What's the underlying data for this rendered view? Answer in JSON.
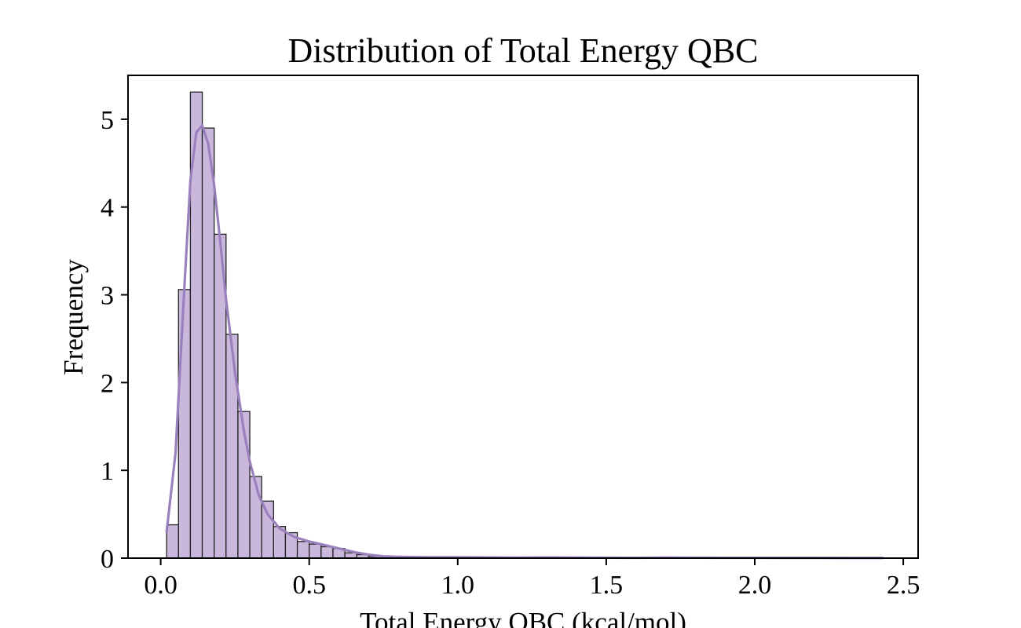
{
  "chart_data": {
    "type": "bar",
    "title": "Distribution of Total Energy QBC",
    "xlabel": "Total Energy QBC (kcal/mol)",
    "ylabel": "Frequency",
    "xlim": [
      -0.11,
      2.55
    ],
    "ylim": [
      0,
      5.5
    ],
    "xticks": [
      0.0,
      0.5,
      1.0,
      1.5,
      2.0,
      2.5
    ],
    "xtick_labels": [
      "0.0",
      "0.5",
      "1.0",
      "1.5",
      "2.0",
      "2.5"
    ],
    "yticks": [
      0,
      1,
      2,
      3,
      4,
      5
    ],
    "ytick_labels": [
      "0",
      "1",
      "2",
      "3",
      "4",
      "5"
    ],
    "grid": false,
    "bar_fill": "#c9b8dc",
    "bar_edge": "#222222",
    "kde_color": "#9a80bd",
    "bins": [
      {
        "x0": 0.02,
        "x1": 0.06,
        "value": 0.38
      },
      {
        "x0": 0.06,
        "x1": 0.1,
        "value": 3.06
      },
      {
        "x0": 0.1,
        "x1": 0.14,
        "value": 5.31
      },
      {
        "x0": 0.14,
        "x1": 0.18,
        "value": 4.9
      },
      {
        "x0": 0.18,
        "x1": 0.22,
        "value": 3.69
      },
      {
        "x0": 0.22,
        "x1": 0.26,
        "value": 2.55
      },
      {
        "x0": 0.26,
        "x1": 0.3,
        "value": 1.67
      },
      {
        "x0": 0.3,
        "x1": 0.34,
        "value": 0.93
      },
      {
        "x0": 0.34,
        "x1": 0.38,
        "value": 0.65
      },
      {
        "x0": 0.38,
        "x1": 0.42,
        "value": 0.36
      },
      {
        "x0": 0.42,
        "x1": 0.46,
        "value": 0.29
      },
      {
        "x0": 0.46,
        "x1": 0.5,
        "value": 0.19
      },
      {
        "x0": 0.5,
        "x1": 0.54,
        "value": 0.16
      },
      {
        "x0": 0.54,
        "x1": 0.58,
        "value": 0.13
      },
      {
        "x0": 0.58,
        "x1": 0.62,
        "value": 0.11
      },
      {
        "x0": 0.62,
        "x1": 0.66,
        "value": 0.06
      },
      {
        "x0": 0.66,
        "x1": 0.7,
        "value": 0.04
      },
      {
        "x0": 0.7,
        "x1": 0.74,
        "value": 0.02
      },
      {
        "x0": 0.74,
        "x1": 0.78,
        "value": 0.01
      },
      {
        "x0": 0.78,
        "x1": 0.82,
        "value": 0.01
      },
      {
        "x0": 0.82,
        "x1": 0.86,
        "value": 0.01
      },
      {
        "x0": 0.86,
        "x1": 0.9,
        "value": 0.01
      }
    ],
    "kde": {
      "x": [
        0.02,
        0.05,
        0.08,
        0.1,
        0.12,
        0.14,
        0.16,
        0.18,
        0.2,
        0.22,
        0.25,
        0.28,
        0.3,
        0.33,
        0.36,
        0.4,
        0.45,
        0.5,
        0.55,
        0.6,
        0.65,
        0.7,
        0.75,
        0.8,
        0.85,
        0.9,
        1.0,
        1.1,
        1.2,
        1.3,
        1.4,
        1.5,
        1.6,
        1.7,
        1.8,
        1.9,
        2.0,
        2.1,
        2.2,
        2.3,
        2.43
      ],
      "y": [
        0.3,
        1.2,
        3.1,
        4.3,
        4.85,
        4.93,
        4.72,
        4.25,
        3.62,
        2.95,
        2.12,
        1.45,
        1.1,
        0.72,
        0.5,
        0.34,
        0.24,
        0.19,
        0.15,
        0.11,
        0.07,
        0.04,
        0.02,
        0.015,
        0.012,
        0.01,
        0.01,
        0.008,
        0.006,
        0.008,
        0.006,
        0.005,
        0.004,
        0.006,
        0.005,
        0.004,
        0.004,
        0.003,
        0.003,
        0.002,
        0.002
      ]
    }
  }
}
